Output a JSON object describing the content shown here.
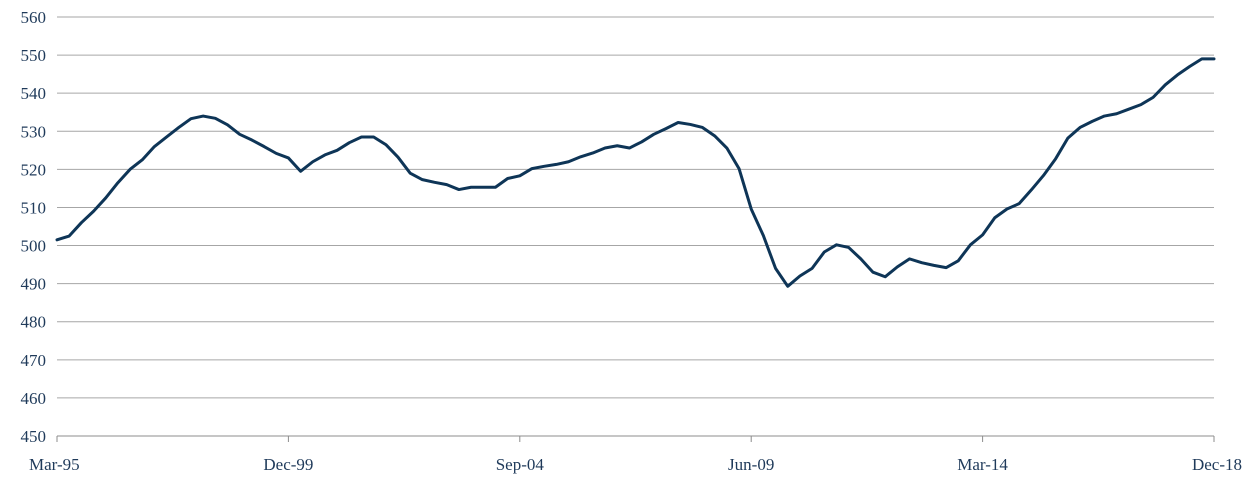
{
  "chart_data": {
    "type": "line",
    "title": "",
    "xlabel": "",
    "ylabel": "",
    "ylim": [
      450,
      560
    ],
    "y_ticks": [
      450,
      460,
      470,
      480,
      490,
      500,
      510,
      520,
      530,
      540,
      550,
      560
    ],
    "x_tick_labels": [
      "Mar-95",
      "Dec-99",
      "Sep-04",
      "Jun-09",
      "Mar-14",
      "Dec-18"
    ],
    "grid": "horizontal",
    "line_color": "#0e3557",
    "series": [
      {
        "x": [
          "Mar-95",
          "Jun-95",
          "Sep-95",
          "Dec-95",
          "Mar-96",
          "Jun-96",
          "Sep-96",
          "Dec-96",
          "Mar-97",
          "Jun-97",
          "Sep-97",
          "Dec-97",
          "Mar-98",
          "Jun-98",
          "Sep-98",
          "Dec-98",
          "Mar-99",
          "Jun-99",
          "Sep-99",
          "Dec-99",
          "Mar-00",
          "Jun-00",
          "Sep-00",
          "Dec-00",
          "Mar-01",
          "Jun-01",
          "Sep-01",
          "Dec-01",
          "Mar-02",
          "Jun-02",
          "Sep-02",
          "Dec-02",
          "Mar-03",
          "Jun-03",
          "Sep-03",
          "Dec-03",
          "Mar-04",
          "Jun-04",
          "Sep-04",
          "Dec-04",
          "Mar-05",
          "Jun-05",
          "Sep-05",
          "Dec-05",
          "Mar-06",
          "Jun-06",
          "Sep-06",
          "Dec-06",
          "Mar-07",
          "Jun-07",
          "Sep-07",
          "Dec-07",
          "Mar-08",
          "Jun-08",
          "Sep-08",
          "Dec-08",
          "Mar-09",
          "Jun-09",
          "Sep-09",
          "Dec-09",
          "Mar-10",
          "Jun-10",
          "Sep-10",
          "Dec-10",
          "Mar-11",
          "Jun-11",
          "Sep-11",
          "Dec-11",
          "Mar-12",
          "Jun-12",
          "Sep-12",
          "Dec-12",
          "Mar-13",
          "Jun-13",
          "Sep-13",
          "Dec-13",
          "Mar-14",
          "Jun-14",
          "Sep-14",
          "Dec-14",
          "Mar-15",
          "Jun-15",
          "Sep-15",
          "Dec-15",
          "Mar-16",
          "Jun-16",
          "Sep-16",
          "Dec-16",
          "Mar-17",
          "Jun-17",
          "Sep-17",
          "Dec-17",
          "Mar-18",
          "Jun-18",
          "Sep-18",
          "Dec-18"
        ],
        "values": [
          501.5,
          502.5,
          506,
          509,
          512.5,
          516.5,
          520,
          522.5,
          526,
          528.5,
          531,
          533.3,
          534,
          533.4,
          531.7,
          529.2,
          527.7,
          526,
          524.2,
          523,
          519.5,
          522,
          523.8,
          525,
          527,
          528.5,
          528.5,
          526.5,
          523.2,
          519,
          517.3,
          516.6,
          516,
          514.7,
          515.3,
          515.3,
          515.3,
          517.6,
          518.3,
          520.2,
          520.8,
          521.3,
          522,
          523.3,
          524.3,
          525.6,
          526.2,
          525.6,
          527.2,
          529.2,
          530.7,
          532.3,
          531.8,
          531,
          528.8,
          525.6,
          520.2,
          509.6,
          502.6,
          494,
          489.3,
          492,
          494,
          498.3,
          500.2,
          499.5,
          496.5,
          493,
          491.8,
          494.4,
          496.5,
          495.5,
          494.8,
          494.2,
          496,
          500.2,
          502.8,
          507.3,
          509.6,
          511,
          514.6,
          518.4,
          522.8,
          528.2,
          531,
          532.6,
          534,
          534.6,
          535.8,
          537,
          538.9,
          542.2,
          544.8,
          547,
          549,
          549
        ]
      }
    ]
  }
}
